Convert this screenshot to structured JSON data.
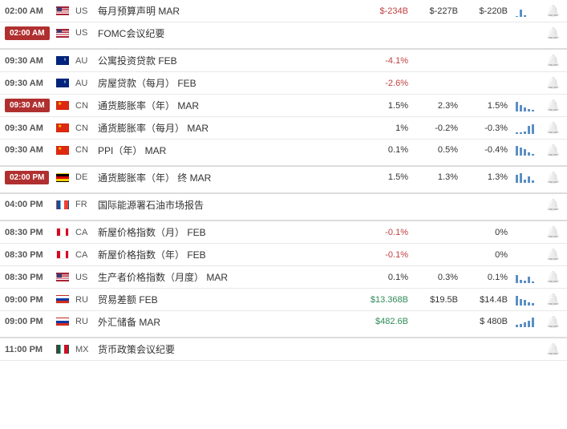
{
  "rows": [
    {
      "time": "02:00 AM",
      "highlight": false,
      "flag": "us",
      "country": "US",
      "title": "每月预算声明 MAR",
      "v1": "$-234B",
      "c1": "neg",
      "v2": "$-227B",
      "c2": "",
      "v3": "$-220B",
      "c3": "",
      "spark": [
        1,
        9,
        2
      ],
      "bell": true,
      "gap": false
    },
    {
      "time": "02:00 AM",
      "highlight": true,
      "flag": "us",
      "country": "US",
      "title": "FOMC会议纪要",
      "v1": "",
      "c1": "",
      "v2": "",
      "c2": "",
      "v3": "",
      "c3": "",
      "spark": null,
      "bell": true,
      "gap": true
    },
    {
      "time": "09:30 AM",
      "highlight": false,
      "flag": "au",
      "country": "AU",
      "title": "公寓投资贷款 FEB",
      "v1": "-4.1%",
      "c1": "neg",
      "v2": "",
      "c2": "",
      "v3": "",
      "c3": "",
      "spark": null,
      "bell": true,
      "gap": false
    },
    {
      "time": "09:30 AM",
      "highlight": false,
      "flag": "au",
      "country": "AU",
      "title": "房屋贷款（每月） FEB",
      "v1": "-2.6%",
      "c1": "neg",
      "v2": "",
      "c2": "",
      "v3": "",
      "c3": "",
      "spark": null,
      "bell": true,
      "gap": false
    },
    {
      "time": "09:30 AM",
      "highlight": true,
      "flag": "cn",
      "country": "CN",
      "title": "通货膨胀率（年） MAR",
      "v1": "1.5%",
      "c1": "",
      "v2": "2.3%",
      "c2": "",
      "v3": "1.5%",
      "c3": "",
      "spark": [
        12,
        8,
        5,
        3,
        2
      ],
      "bell": true,
      "gap": false
    },
    {
      "time": "09:30 AM",
      "highlight": false,
      "flag": "cn",
      "country": "CN",
      "title": "通货膨胀率（每月） MAR",
      "v1": "1%",
      "c1": "",
      "v2": "-0.2%",
      "c2": "",
      "v3": "-0.3%",
      "c3": "",
      "spark": [
        2,
        2,
        3,
        10,
        12
      ],
      "bell": true,
      "gap": false
    },
    {
      "time": "09:30 AM",
      "highlight": false,
      "flag": "cn",
      "country": "CN",
      "title": "PPI（年） MAR",
      "v1": "0.1%",
      "c1": "",
      "v2": "0.5%",
      "c2": "",
      "v3": "-0.4%",
      "c3": "",
      "spark": [
        12,
        10,
        8,
        4,
        2
      ],
      "bell": true,
      "gap": true
    },
    {
      "time": "02:00 PM",
      "highlight": true,
      "flag": "de",
      "country": "DE",
      "title": "通货膨胀率（年） 终 MAR",
      "v1": "1.5%",
      "c1": "",
      "v2": "1.3%",
      "c2": "",
      "v3": "1.3%",
      "c3": "",
      "spark": [
        10,
        12,
        4,
        8,
        3
      ],
      "bell": true,
      "gap": true
    },
    {
      "time": "04:00 PM",
      "highlight": false,
      "flag": "fr",
      "country": "FR",
      "title": "国际能源署石油市场报告",
      "v1": "",
      "c1": "",
      "v2": "",
      "c2": "",
      "v3": "",
      "c3": "",
      "spark": null,
      "bell": true,
      "gap": true
    },
    {
      "time": "08:30 PM",
      "highlight": false,
      "flag": "ca",
      "country": "CA",
      "title": "新屋价格指数（月） FEB",
      "v1": "-0.1%",
      "c1": "neg",
      "v2": "",
      "c2": "",
      "v3": "0%",
      "c3": "",
      "spark": null,
      "bell": true,
      "gap": false
    },
    {
      "time": "08:30 PM",
      "highlight": false,
      "flag": "ca",
      "country": "CA",
      "title": "新屋价格指数（年） FEB",
      "v1": "-0.1%",
      "c1": "neg",
      "v2": "",
      "c2": "",
      "v3": "0%",
      "c3": "",
      "spark": null,
      "bell": true,
      "gap": false
    },
    {
      "time": "08:30 PM",
      "highlight": false,
      "flag": "us",
      "country": "US",
      "title": "生产者价格指数（月度） MAR",
      "v1": "0.1%",
      "c1": "",
      "v2": "0.3%",
      "c2": "",
      "v3": "0.1%",
      "c3": "",
      "spark": [
        10,
        4,
        3,
        8,
        2
      ],
      "bell": true,
      "gap": false
    },
    {
      "time": "09:00 PM",
      "highlight": false,
      "flag": "ru",
      "country": "RU",
      "title": "贸易差额 FEB",
      "v1": "$13.368B",
      "c1": "pos",
      "v2": "$19.5B",
      "c2": "",
      "v3": "$14.4B",
      "c3": "",
      "spark": [
        12,
        8,
        7,
        4,
        3
      ],
      "bell": true,
      "gap": false
    },
    {
      "time": "09:00 PM",
      "highlight": false,
      "flag": "ru",
      "country": "RU",
      "title": "外汇储备 MAR",
      "v1": "$482.6B",
      "c1": "pos",
      "v2": "",
      "c2": "",
      "v3": "$ 480B",
      "c3": "",
      "spark": [
        3,
        4,
        6,
        8,
        12
      ],
      "bell": true,
      "gap": true
    },
    {
      "time": "11:00 PM",
      "highlight": false,
      "flag": "mx",
      "country": "MX",
      "title": "货币政策会议纪要",
      "v1": "",
      "c1": "",
      "v2": "",
      "c2": "",
      "v3": "",
      "c3": "",
      "spark": null,
      "bell": true,
      "gap": false
    }
  ]
}
